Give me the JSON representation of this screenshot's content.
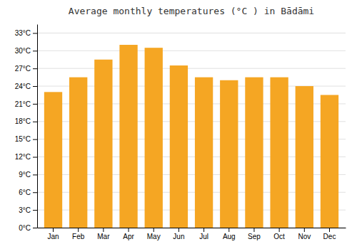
{
  "chart_data": {
    "type": "bar",
    "title": "Average monthly temperatures (°C ) in Bādāmi",
    "categories": [
      "Jan",
      "Feb",
      "Mar",
      "Apr",
      "May",
      "Jun",
      "Jul",
      "Aug",
      "Sep",
      "Oct",
      "Nov",
      "Dec"
    ],
    "values": [
      23.0,
      25.5,
      28.5,
      31.0,
      30.5,
      27.5,
      25.5,
      25.0,
      25.5,
      25.5,
      24.0,
      22.5
    ],
    "color": "#F5A623",
    "ylim": [
      0,
      34.5
    ],
    "yticks": [
      {
        "value": 0,
        "label": "0°C"
      },
      {
        "value": 3,
        "label": "3°C"
      },
      {
        "value": 6,
        "label": "6°C"
      },
      {
        "value": 9,
        "label": "9°C"
      },
      {
        "value": 12,
        "label": "12°C"
      },
      {
        "value": 15,
        "label": "15°C"
      },
      {
        "value": 18,
        "label": "18°C"
      },
      {
        "value": 21,
        "label": "21°C"
      },
      {
        "value": 24,
        "label": "24°C"
      },
      {
        "value": 27,
        "label": "27°C"
      },
      {
        "value": 30,
        "label": "30°C"
      },
      {
        "value": 33,
        "label": "33°C"
      }
    ],
    "grid": true
  }
}
